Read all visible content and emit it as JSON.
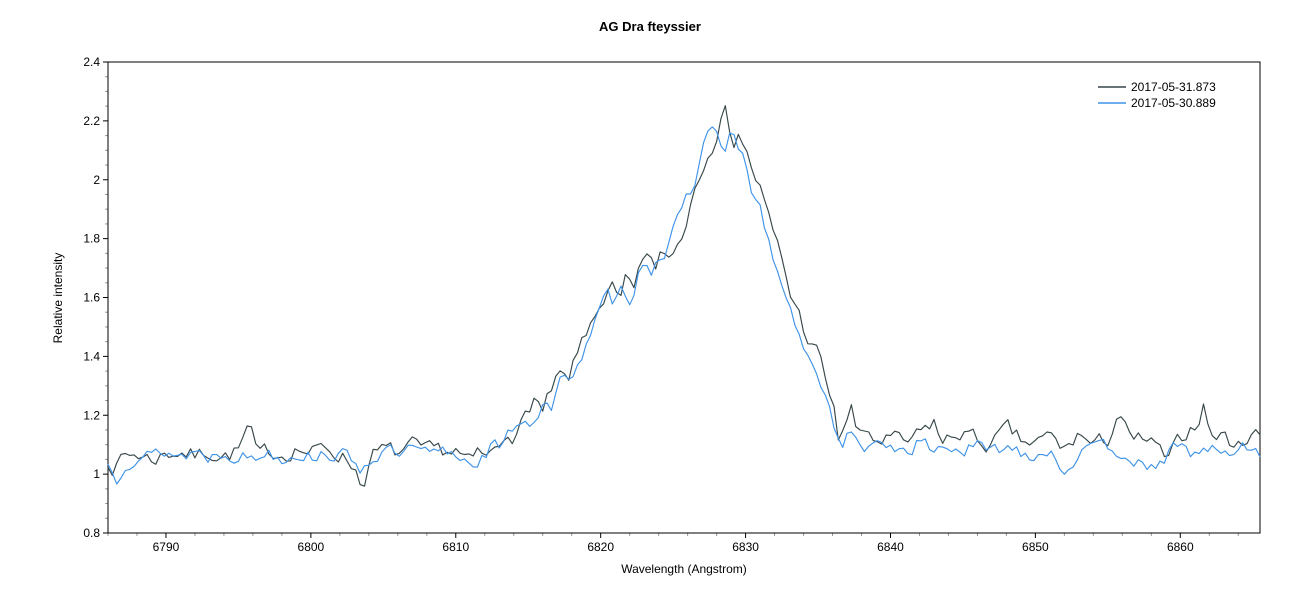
{
  "page": {
    "background": "#ffffff"
  },
  "chart_data": {
    "type": "line",
    "title": "AG Dra  fteyssier",
    "xlabel": "Wavelength (Angstrom)",
    "ylabel": "Relative intensity",
    "xlim": [
      6786,
      6865.5
    ],
    "ylim": [
      0.8,
      2.4
    ],
    "grid": false,
    "legend_position": "top-right",
    "axis_color": "#000000",
    "minor_tick_color": "#9a9a9a",
    "x_major_ticks": [
      6790,
      6800,
      6810,
      6820,
      6830,
      6840,
      6850,
      6860
    ],
    "x_major_labels": [
      "6790",
      "6800",
      "6810",
      "6820",
      "6830",
      "6840",
      "6850",
      "6860"
    ],
    "x_minor_step": 2,
    "y_major_ticks": [
      0.8,
      1.0,
      1.2,
      1.4,
      1.6,
      1.8,
      2.0,
      2.2,
      2.4
    ],
    "y_major_labels": [
      "0.8",
      "1",
      "1.2",
      "1.4",
      "1.6",
      "1.8",
      "2",
      "2.2",
      "2.4"
    ],
    "y_minor_step": 0.05,
    "sample_step": 0.3,
    "series": [
      {
        "name": "2017-05-31.873",
        "color": "#37474a",
        "noise_amp": 0.05,
        "seed": 7,
        "envelope": [
          [
            6786,
            1.05
          ],
          [
            6786.5,
            1.02
          ],
          [
            6787,
            1.06
          ],
          [
            6788,
            1.07
          ],
          [
            6789,
            1.05
          ],
          [
            6790,
            1.07
          ],
          [
            6791,
            1.08
          ],
          [
            6792,
            1.06
          ],
          [
            6793,
            1.08
          ],
          [
            6794,
            1.06
          ],
          [
            6795,
            1.08
          ],
          [
            6795.7,
            1.16
          ],
          [
            6796.4,
            1.05
          ],
          [
            6797,
            1.08
          ],
          [
            6798,
            1.07
          ],
          [
            6799,
            1.09
          ],
          [
            6800,
            1.07
          ],
          [
            6801,
            1.09
          ],
          [
            6802,
            1.07
          ],
          [
            6803,
            1.03
          ],
          [
            6803.5,
            0.96
          ],
          [
            6804.2,
            1.06
          ],
          [
            6805,
            1.08
          ],
          [
            6806,
            1.07
          ],
          [
            6807,
            1.09
          ],
          [
            6808,
            1.07
          ],
          [
            6809,
            1.08
          ],
          [
            6810,
            1.08
          ],
          [
            6811,
            1.03
          ],
          [
            6811.6,
            1.07
          ],
          [
            6812.2,
            1.05
          ],
          [
            6813,
            1.1
          ],
          [
            6813.6,
            1.16
          ],
          [
            6814.2,
            1.13
          ],
          [
            6815,
            1.22
          ],
          [
            6815.5,
            1.27
          ],
          [
            6816,
            1.2
          ],
          [
            6816.6,
            1.28
          ],
          [
            6817.2,
            1.33
          ],
          [
            6817.8,
            1.3
          ],
          [
            6818.4,
            1.42
          ],
          [
            6819,
            1.46
          ],
          [
            6819.6,
            1.55
          ],
          [
            6820.2,
            1.6
          ],
          [
            6820.8,
            1.63
          ],
          [
            6821.3,
            1.57
          ],
          [
            6821.8,
            1.66
          ],
          [
            6822.3,
            1.61
          ],
          [
            6822.8,
            1.7
          ],
          [
            6823.3,
            1.77
          ],
          [
            6823.8,
            1.68
          ],
          [
            6824.3,
            1.76
          ],
          [
            6824.8,
            1.73
          ],
          [
            6825.3,
            1.78
          ],
          [
            6825.8,
            1.84
          ],
          [
            6826.3,
            1.95
          ],
          [
            6826.8,
            2.02
          ],
          [
            6827.3,
            2.1
          ],
          [
            6827.8,
            2.14
          ],
          [
            6828.2,
            2.2
          ],
          [
            6828.7,
            2.23
          ],
          [
            6829.1,
            2.12
          ],
          [
            6829.5,
            2.17
          ],
          [
            6830,
            2.1
          ],
          [
            6830.5,
            2.03
          ],
          [
            6831,
            1.97
          ],
          [
            6831.5,
            1.88
          ],
          [
            6832,
            1.8
          ],
          [
            6832.5,
            1.73
          ],
          [
            6833,
            1.62
          ],
          [
            6833.5,
            1.57
          ],
          [
            6834,
            1.5
          ],
          [
            6834.5,
            1.44
          ],
          [
            6835,
            1.41
          ],
          [
            6835.5,
            1.32
          ],
          [
            6836,
            1.24
          ],
          [
            6836.4,
            1.12
          ],
          [
            6836.8,
            1.17
          ],
          [
            6837.3,
            1.22
          ],
          [
            6837.8,
            1.12
          ],
          [
            6838.5,
            1.14
          ],
          [
            6839,
            1.11
          ],
          [
            6840,
            1.12
          ],
          [
            6841,
            1.1
          ],
          [
            6842,
            1.13
          ],
          [
            6843,
            1.18
          ],
          [
            6843.6,
            1.1
          ],
          [
            6844.4,
            1.13
          ],
          [
            6845,
            1.15
          ],
          [
            6846,
            1.11
          ],
          [
            6847,
            1.1
          ],
          [
            6848,
            1.15
          ],
          [
            6849,
            1.11
          ],
          [
            6850,
            1.1
          ],
          [
            6851,
            1.13
          ],
          [
            6852,
            1.08
          ],
          [
            6853,
            1.14
          ],
          [
            6854,
            1.09
          ],
          [
            6855,
            1.12
          ],
          [
            6855.8,
            1.22
          ],
          [
            6856.6,
            1.1
          ],
          [
            6857.5,
            1.12
          ],
          [
            6858.5,
            1.08
          ],
          [
            6859.2,
            1.04
          ],
          [
            6860,
            1.12
          ],
          [
            6861,
            1.17
          ],
          [
            6861.6,
            1.23
          ],
          [
            6862.2,
            1.13
          ],
          [
            6863,
            1.13
          ],
          [
            6864,
            1.09
          ],
          [
            6865,
            1.16
          ],
          [
            6865.5,
            1.12
          ]
        ]
      },
      {
        "name": "2017-05-30.889",
        "color": "#3f93e8",
        "noise_amp": 0.045,
        "seed": 13,
        "envelope": [
          [
            6786,
            1.03
          ],
          [
            6786.6,
            0.99
          ],
          [
            6787.2,
            1.05
          ],
          [
            6788,
            1.07
          ],
          [
            6789,
            1.06
          ],
          [
            6790,
            1.08
          ],
          [
            6791,
            1.06
          ],
          [
            6792,
            1.08
          ],
          [
            6793,
            1.06
          ],
          [
            6794,
            1.08
          ],
          [
            6795,
            1.07
          ],
          [
            6796,
            1.05
          ],
          [
            6797,
            1.08
          ],
          [
            6798,
            1.06
          ],
          [
            6799,
            1.08
          ],
          [
            6800,
            1.06
          ],
          [
            6801,
            1.08
          ],
          [
            6802,
            1.06
          ],
          [
            6803,
            1.05
          ],
          [
            6803.6,
            1.02
          ],
          [
            6804.2,
            1.06
          ],
          [
            6805,
            1.08
          ],
          [
            6806,
            1.06
          ],
          [
            6807,
            1.08
          ],
          [
            6808,
            1.06
          ],
          [
            6809,
            1.07
          ],
          [
            6810,
            1.07
          ],
          [
            6811,
            1.04
          ],
          [
            6812,
            1.07
          ],
          [
            6812.6,
            1.1
          ],
          [
            6813.2,
            1.08
          ],
          [
            6814,
            1.16
          ],
          [
            6814.6,
            1.2
          ],
          [
            6815.2,
            1.17
          ],
          [
            6816,
            1.24
          ],
          [
            6816.6,
            1.22
          ],
          [
            6817.2,
            1.3
          ],
          [
            6818,
            1.35
          ],
          [
            6818.6,
            1.4
          ],
          [
            6819.2,
            1.45
          ],
          [
            6819.8,
            1.53
          ],
          [
            6820.4,
            1.6
          ],
          [
            6821,
            1.58
          ],
          [
            6821.5,
            1.63
          ],
          [
            6822,
            1.6
          ],
          [
            6822.5,
            1.67
          ],
          [
            6823,
            1.74
          ],
          [
            6823.5,
            1.7
          ],
          [
            6824,
            1.76
          ],
          [
            6824.5,
            1.74
          ],
          [
            6825,
            1.81
          ],
          [
            6825.5,
            1.87
          ],
          [
            6826,
            1.94
          ],
          [
            6826.5,
            2.0
          ],
          [
            6827,
            2.09
          ],
          [
            6827.5,
            2.2
          ],
          [
            6828,
            2.16
          ],
          [
            6828.4,
            2.08
          ],
          [
            6829,
            2.16
          ],
          [
            6829.5,
            2.1
          ],
          [
            6830,
            2.04
          ],
          [
            6830.5,
            1.95
          ],
          [
            6831,
            1.9
          ],
          [
            6831.5,
            1.8
          ],
          [
            6832,
            1.71
          ],
          [
            6832.5,
            1.65
          ],
          [
            6833,
            1.55
          ],
          [
            6833.5,
            1.5
          ],
          [
            6834,
            1.41
          ],
          [
            6834.5,
            1.36
          ],
          [
            6835,
            1.35
          ],
          [
            6835.5,
            1.27
          ],
          [
            6836,
            1.19
          ],
          [
            6836.5,
            1.1
          ],
          [
            6837,
            1.13
          ],
          [
            6838,
            1.1
          ],
          [
            6839,
            1.08
          ],
          [
            6840,
            1.1
          ],
          [
            6841,
            1.08
          ],
          [
            6842,
            1.11
          ],
          [
            6843,
            1.08
          ],
          [
            6844,
            1.1
          ],
          [
            6845,
            1.08
          ],
          [
            6846,
            1.09
          ],
          [
            6847,
            1.07
          ],
          [
            6848,
            1.1
          ],
          [
            6849,
            1.08
          ],
          [
            6850,
            1.07
          ],
          [
            6851,
            1.09
          ],
          [
            6852,
            1.01
          ],
          [
            6853,
            1.08
          ],
          [
            6854,
            1.07
          ],
          [
            6855,
            1.09
          ],
          [
            6856,
            1.08
          ],
          [
            6857,
            1.05
          ],
          [
            6857.8,
            0.98
          ],
          [
            6858.6,
            1.05
          ],
          [
            6859.4,
            1.08
          ],
          [
            6860,
            1.08
          ],
          [
            6861,
            1.07
          ],
          [
            6862,
            1.09
          ],
          [
            6863,
            1.06
          ],
          [
            6864,
            1.08
          ],
          [
            6865,
            1.1
          ],
          [
            6865.5,
            1.08
          ]
        ]
      }
    ]
  }
}
